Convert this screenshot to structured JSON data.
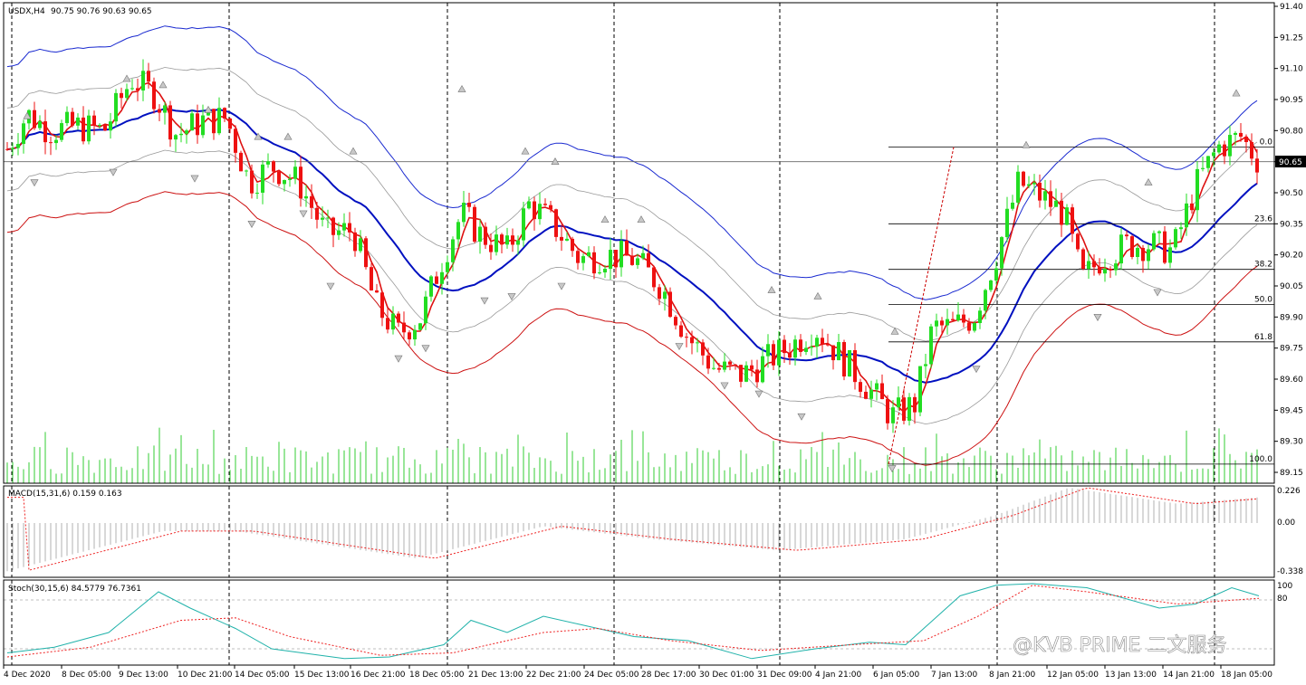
{
  "main_panel": {
    "symbol_label": "USDX,H4",
    "ohlc_label": "90.75 90.76 90.63 90.65",
    "current_price_label": "90.65",
    "y_ticks": [
      "91.40",
      "91.25",
      "91.10",
      "90.95",
      "90.80",
      "90.65",
      "90.50",
      "90.35",
      "90.20",
      "90.05",
      "89.90",
      "89.75",
      "89.60",
      "89.45",
      "89.30",
      "89.15"
    ],
    "fib_levels": [
      {
        "label": "0.0",
        "price": 90.72
      },
      {
        "label": "23.6",
        "price": 90.35
      },
      {
        "label": "38.2",
        "price": 90.13
      },
      {
        "label": "50.0",
        "price": 89.96
      },
      {
        "label": "61.8",
        "price": 89.78
      },
      {
        "label": "100.0",
        "price": 89.19
      }
    ]
  },
  "macd_panel": {
    "label": "MACD(15,31,6) 0.159 0.163",
    "y_ticks": [
      "0.226",
      "0.00",
      "-0.338"
    ]
  },
  "stoch_panel": {
    "label": "Stoch(30,15,6) 84.5779 76.7361",
    "y_ticks": [
      "100",
      "80"
    ]
  },
  "x_axis_labels": [
    "4 Dec 2020",
    "8 Dec 05:00",
    "9 Dec 13:00",
    "10 Dec 21:00",
    "14 Dec 05:00",
    "15 Dec 13:00",
    "16 Dec 21:00",
    "18 Dec 05:00",
    "21 Dec 13:00",
    "22 Dec 21:00",
    "24 Dec 05:00",
    "28 Dec 17:00",
    "30 Dec 01:00",
    "31 Dec 09:00",
    "4 Jan 21:00",
    "6 Jan 05:00",
    "7 Jan 13:00",
    "8 Jan 21:00",
    "12 Jan 05:00",
    "13 Jan 13:00",
    "14 Jan 21:00",
    "18 Jan 05:00"
  ],
  "watermark": "@KVB PRIME 二文服务",
  "colors": {
    "bull": "#22dd22",
    "bear": "#ee1111",
    "ma_blue": "#0010c0",
    "band_blue": "#1a2ad0",
    "band_red": "#cc1111",
    "ma_red": "#dd1111",
    "volume": "#33cc33",
    "signal": "#ee2222",
    "stoch_main": "#20b2aa"
  },
  "chart_data": [
    {
      "type": "candlestick",
      "title": "USDX,H4",
      "ylim": [
        89.1,
        91.42
      ],
      "ohlc_points": [
        [
          4,
          90.68
        ],
        [
          30,
          90.88
        ],
        [
          55,
          90.8
        ],
        [
          85,
          90.82
        ],
        [
          115,
          90.8
        ],
        [
          145,
          91.05
        ],
        [
          170,
          90.98
        ],
        [
          195,
          90.78
        ],
        [
          225,
          90.85
        ],
        [
          250,
          90.86
        ],
        [
          275,
          90.55
        ],
        [
          300,
          90.63
        ],
        [
          330,
          90.55
        ],
        [
          360,
          90.3
        ],
        [
          390,
          90.32
        ],
        [
          415,
          89.95
        ],
        [
          440,
          89.82
        ],
        [
          465,
          89.9
        ],
        [
          490,
          90.2
        ],
        [
          510,
          90.4
        ],
        [
          530,
          90.3
        ],
        [
          560,
          90.22
        ],
        [
          585,
          90.45
        ],
        [
          610,
          90.35
        ],
        [
          640,
          90.18
        ],
        [
          670,
          90.2
        ],
        [
          700,
          90.18
        ],
        [
          730,
          90.05
        ],
        [
          760,
          89.8
        ],
        [
          790,
          89.65
        ],
        [
          820,
          89.62
        ],
        [
          850,
          89.7
        ],
        [
          870,
          89.75
        ],
        [
          900,
          89.85
        ],
        [
          930,
          89.7
        ],
        [
          960,
          89.55
        ],
        [
          985,
          89.42
        ],
        [
          1010,
          89.48
        ],
        [
          1030,
          89.85
        ],
        [
          1050,
          89.85
        ],
        [
          1075,
          89.9
        ],
        [
          1100,
          90.2
        ],
        [
          1125,
          90.55
        ],
        [
          1150,
          90.48
        ],
        [
          1175,
          90.4
        ],
        [
          1195,
          90.08
        ],
        [
          1215,
          90.18
        ],
        [
          1245,
          90.25
        ],
        [
          1270,
          90.25
        ],
        [
          1295,
          90.22
        ],
        [
          1320,
          90.53
        ],
        [
          1345,
          90.72
        ],
        [
          1370,
          90.77
        ],
        [
          1390,
          90.65
        ]
      ]
    },
    {
      "type": "line",
      "title": "MACD(15,31,6) 0.159 0.163",
      "ylim": [
        -0.338,
        0.226
      ]
    },
    {
      "type": "line",
      "title": "Stoch(30,15,6) 84.5779 76.7361",
      "ylim": [
        0,
        100
      ]
    }
  ]
}
